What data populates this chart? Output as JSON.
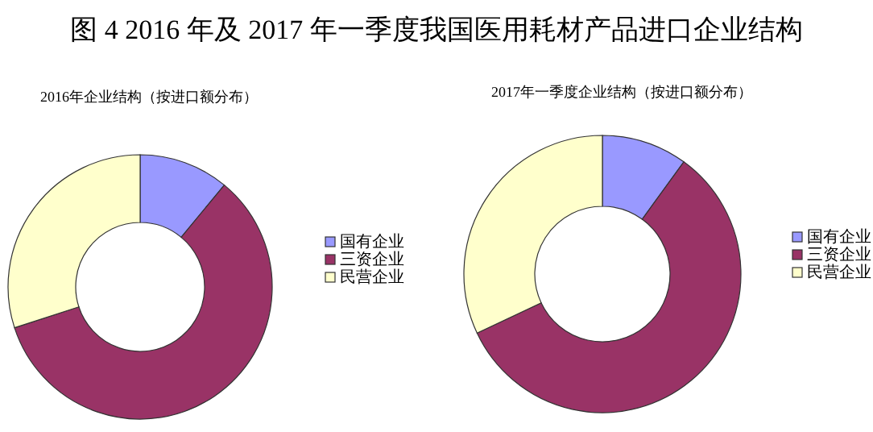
{
  "chart_data": [
    {
      "type": "donut",
      "title": "图 4 2016 年及 2017 年一季度我国医用耗材产品进口企业结构",
      "subtitle": "2016年企业结构（按进口额分布）",
      "categories": [
        "国有企业",
        "三资企业",
        "民营企业"
      ],
      "values": [
        11,
        59,
        30
      ],
      "colors": [
        "#9999ff",
        "#993366",
        "#ffffcc"
      ],
      "legend": "right"
    },
    {
      "type": "donut",
      "title": "2017年一季度企业结构（按进口额分布）",
      "categories": [
        "国有企业",
        "三资企业",
        "民营企业"
      ],
      "values": [
        10,
        58,
        32
      ],
      "colors": [
        "#9999ff",
        "#993366",
        "#ffffcc"
      ],
      "legend": "right"
    }
  ]
}
